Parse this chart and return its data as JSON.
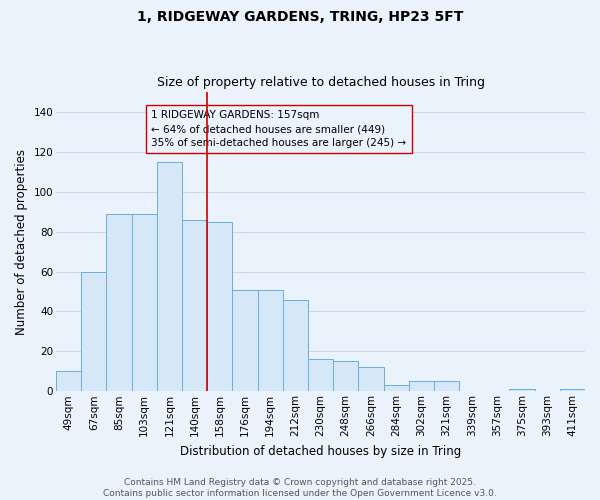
{
  "title_line1": "1, RIDGEWAY GARDENS, TRING, HP23 5FT",
  "title_line2": "Size of property relative to detached houses in Tring",
  "categories": [
    "49sqm",
    "67sqm",
    "85sqm",
    "103sqm",
    "121sqm",
    "140sqm",
    "158sqm",
    "176sqm",
    "194sqm",
    "212sqm",
    "230sqm",
    "248sqm",
    "266sqm",
    "284sqm",
    "302sqm",
    "321sqm",
    "339sqm",
    "357sqm",
    "375sqm",
    "393sqm",
    "411sqm"
  ],
  "values": [
    10,
    60,
    89,
    89,
    115,
    86,
    85,
    51,
    51,
    46,
    16,
    15,
    12,
    3,
    5,
    5,
    0,
    0,
    1,
    0,
    1
  ],
  "bar_color": "#d6e8f7",
  "bar_edge_color": "#6aaed6",
  "ylabel": "Number of detached properties",
  "xlabel": "Distribution of detached houses by size in Tring",
  "ylim": [
    0,
    150
  ],
  "yticks": [
    0,
    20,
    40,
    60,
    80,
    100,
    120,
    140
  ],
  "vline_x": 6.0,
  "vline_color": "#cc0000",
  "annotation_text": "1 RIDGEWAY GARDENS: 157sqm\n← 64% of detached houses are smaller (449)\n35% of semi-detached houses are larger (245) →",
  "footer_line1": "Contains HM Land Registry data © Crown copyright and database right 2025.",
  "footer_line2": "Contains public sector information licensed under the Open Government Licence v3.0.",
  "background_color": "#eaf2fb",
  "grid_color": "#c8d8e8",
  "title_fontsize": 10,
  "subtitle_fontsize": 9,
  "axis_label_fontsize": 8.5,
  "tick_fontsize": 7.5,
  "annotation_fontsize": 7.5,
  "footer_fontsize": 6.5
}
